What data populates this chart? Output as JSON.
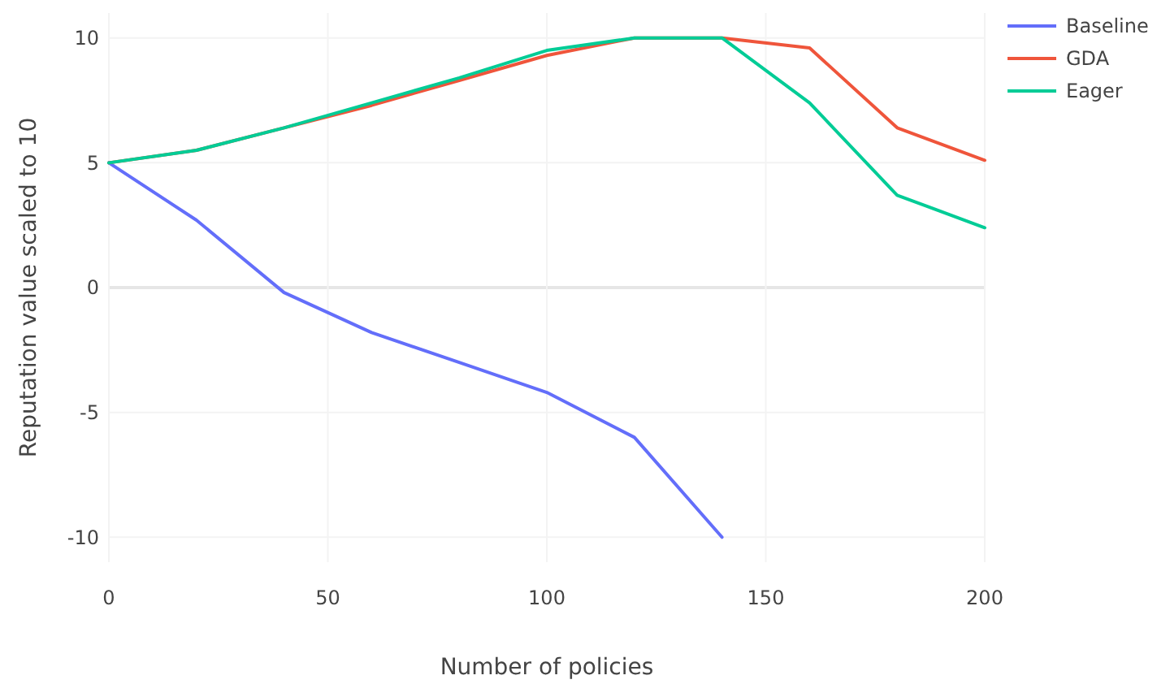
{
  "chart_data": {
    "type": "line",
    "xlabel": "Number of policies",
    "ylabel": "Reputation value scaled to 10",
    "x": [
      0,
      20,
      40,
      60,
      80,
      100,
      120,
      140,
      160,
      180,
      200
    ],
    "series": [
      {
        "name": "Baseline",
        "color": "#636efa",
        "values": [
          5,
          2.7,
          -0.2,
          -1.8,
          -3,
          -4.2,
          -6,
          -10,
          null,
          null,
          null
        ]
      },
      {
        "name": "GDA",
        "color": "#ef553b",
        "values": [
          5,
          5.5,
          6.4,
          7.3,
          8.3,
          9.3,
          10,
          10,
          9.6,
          6.4,
          5.1
        ]
      },
      {
        "name": "Eager",
        "color": "#00cc96",
        "values": [
          5,
          5.5,
          6.4,
          7.4,
          8.4,
          9.5,
          10,
          10,
          7.4,
          3.7,
          2.4
        ]
      }
    ],
    "xlim": [
      0,
      200
    ],
    "ylim": [
      -11,
      11
    ],
    "xticks": [
      0,
      50,
      100,
      150,
      200
    ],
    "yticks": [
      -10,
      -5,
      0,
      5,
      10
    ],
    "grid": true,
    "legend": "top right",
    "line_style": "solid"
  }
}
